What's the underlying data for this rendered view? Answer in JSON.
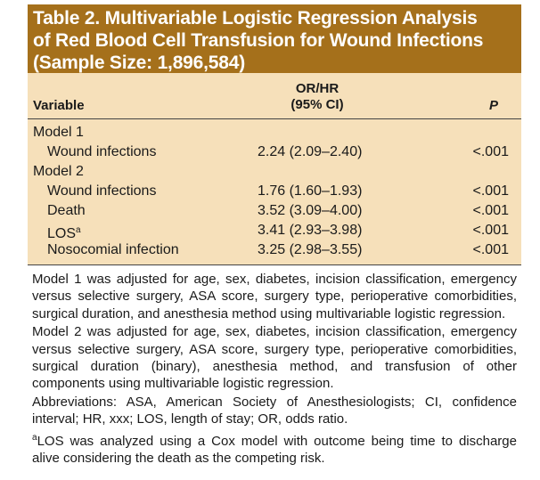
{
  "table": {
    "title_line1": "Table 2. Multivariable Logistic Regression Analysis",
    "title_line2": "of Red Blood Cell Transfusion for Wound Infections",
    "title_line3": "(Sample Size: 1,896,584)",
    "colors": {
      "title_bg": "#a5701b",
      "body_bg": "#f6e0ba"
    },
    "headers": {
      "variable": "Variable",
      "orhr_line1": "OR/HR",
      "orhr_line2": "(95% CI)",
      "p": "P"
    },
    "rows": [
      {
        "variable": "Model 1",
        "or": "",
        "p": ""
      },
      {
        "variable": "Wound infections",
        "or": "2.24 (2.09–2.40)",
        "p": "<.001"
      },
      {
        "variable": "Model 2",
        "or": "",
        "p": ""
      },
      {
        "variable": "Wound infections",
        "or": "1.76 (1.60–1.93)",
        "p": "<.001"
      },
      {
        "variable": "Death",
        "or": "3.52 (3.09–4.00)",
        "p": "<.001"
      },
      {
        "variable": "LOS",
        "superscript": "a",
        "or": "3.41 (2.93–3.98)",
        "p": "<.001"
      },
      {
        "variable": "Nosocomial infection",
        "or": "3.25 (2.98–3.55)",
        "p": "<.001"
      }
    ]
  },
  "footnotes": {
    "model1": "Model 1 was adjusted for age, sex, diabetes, incision classification, emergency versus selective surgery, ASA score, surgery type, perioperative comorbidities, surgical duration, and anesthesia method using multivariable logistic regression.",
    "model2": "Model 2 was adjusted for age, sex, diabetes, incision classification, emergency versus selective surgery, ASA score, surgery type, perioperative comorbidities, surgical duration (binary), anesthesia method, and transfusion of other components using multivariable logistic regression.",
    "abbreviations": "Abbreviations: ASA, American Society of Anesthesiologists; CI, confidence interval; HR, xxx; LOS, length of stay; OR, odds ratio.",
    "los_marker": "a",
    "los_note": "LOS was analyzed using a Cox model with outcome being time to discharge alive considering the death as the competing risk."
  }
}
